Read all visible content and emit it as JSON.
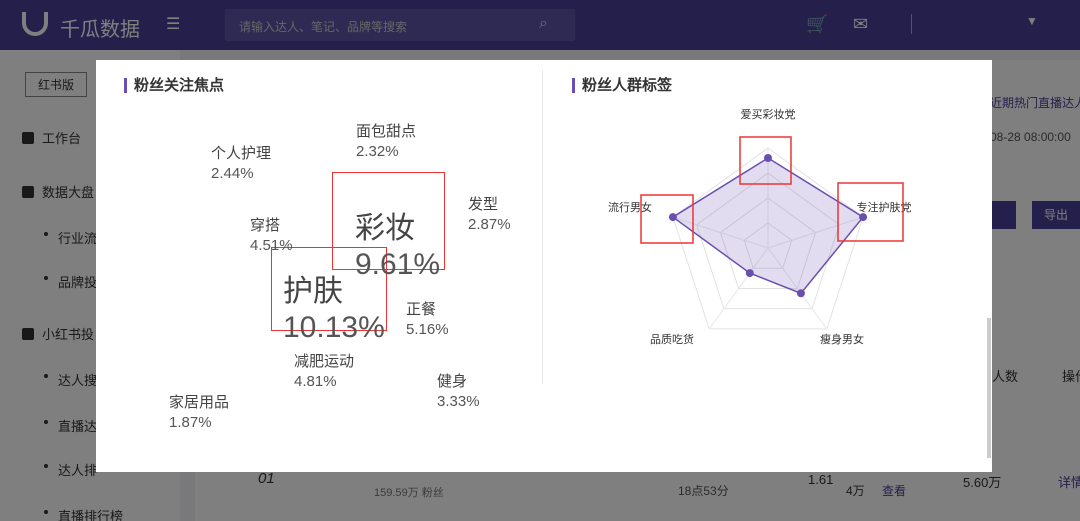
{
  "nav": {
    "logo": "千瓜数据",
    "search_placeholder": "请输入达人、笔记、品牌等搜索"
  },
  "sidebar": {
    "tab": "红书版",
    "items": [
      "工作台",
      "数据大盘",
      "行业流",
      "品牌投",
      "小红书投",
      "达人搜",
      "直播达",
      "达人排",
      "直播排行榜"
    ]
  },
  "background": {
    "heading": "近期热门直播达人",
    "time": "08-28 08:00:00",
    "export": "导出",
    "col_count": "人数",
    "col_action": "操作",
    "row": {
      "rank": "01",
      "fans": "159.59万 粉丝",
      "duration": "18点53分",
      "ratio": "1.61",
      "count": "4万",
      "view": "查看",
      "sales": "5.60万",
      "detail": "详情"
    }
  },
  "word_cloud": {
    "title": "粉丝关注焦点",
    "words": [
      {
        "word": "面包甜点",
        "share": "2.32%"
      },
      {
        "word": "个人护理",
        "share": "2.44%"
      },
      {
        "word": "发型",
        "share": "2.87%"
      },
      {
        "word": "彩妆",
        "share": "9.61%"
      },
      {
        "word": "穿搭",
        "share": "4.51%"
      },
      {
        "word": "护肤",
        "share": "10.13%"
      },
      {
        "word": "正餐",
        "share": "5.16%"
      },
      {
        "word": "减肥运动",
        "share": "4.81%"
      },
      {
        "word": "健身",
        "share": "3.33%"
      },
      {
        "word": "家居用品",
        "share": "1.87%"
      }
    ]
  },
  "chart_data": {
    "type": "radar",
    "title": "粉丝人群标签",
    "categories": [
      "爱买彩妆党",
      "专注护肤党",
      "瘦身男女",
      "品质吃货",
      "流行男女"
    ],
    "values": [
      90,
      100,
      56,
      31,
      100
    ],
    "rlim": [
      0,
      100
    ],
    "rticks": [
      25,
      50,
      75,
      100
    ],
    "color": "#6a4fb0"
  }
}
